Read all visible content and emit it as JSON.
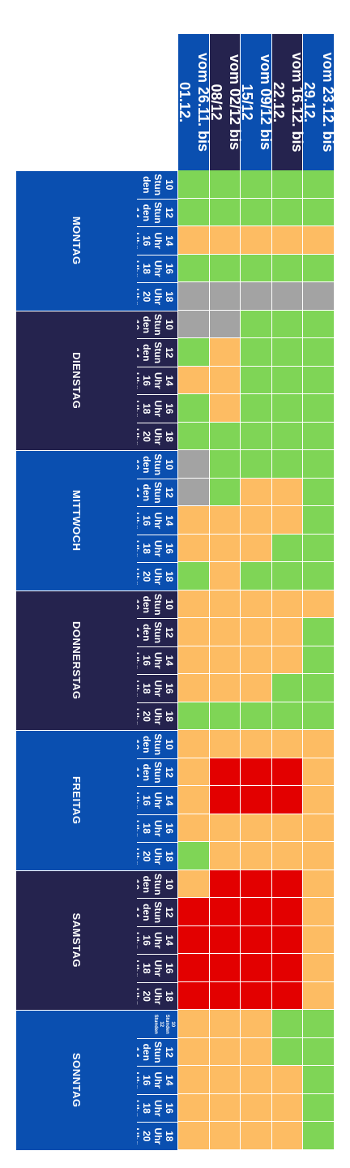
{
  "colors": {
    "header_blue": "#0a4fb0",
    "header_navy": "#25234e",
    "green": "#7fd556",
    "orange": "#fdbc63",
    "red": "#e30000",
    "gray": "#a3a3a3"
  },
  "week_headers": [
    {
      "label": "vom 23.12. bis 29.12.",
      "color": "blue"
    },
    {
      "label": "vom 16.12. bis 22.12.",
      "color": "navy"
    },
    {
      "label": "vom 09/12 bis 15/12",
      "color": "blue"
    },
    {
      "label": "vom 02/12 bis 08/12",
      "color": "navy"
    },
    {
      "label": "vom 26.11. bis 01.12.",
      "color": "blue"
    }
  ],
  "days": [
    {
      "name": "MONTAG",
      "color": "blue",
      "slots": [
        "10 Stunden",
        "12 Stunden",
        "14 Uhr",
        "16 Uhr",
        "18 Uhr"
      ],
      "slot_lines": [
        [
          "10",
          "Stun",
          "den"
        ],
        [
          "12",
          "Stun",
          "den"
        ],
        [
          "14",
          "Uhr",
          "16"
        ],
        [
          "16",
          "Uhr",
          "18"
        ],
        [
          "18",
          "Uhr",
          "20"
        ]
      ],
      "slot_tail": [
        "12",
        "Uhr",
        "Uhr",
        "Uhr",
        "Uhr"
      ],
      "cells": [
        [
          "g",
          "g",
          "g",
          "g",
          "g"
        ],
        [
          "g",
          "g",
          "g",
          "g",
          "g"
        ],
        [
          "o",
          "o",
          "o",
          "o",
          "o"
        ],
        [
          "g",
          "g",
          "g",
          "g",
          "g"
        ],
        [
          "x",
          "x",
          "x",
          "x",
          "x"
        ]
      ]
    },
    {
      "name": "DIENSTAG",
      "color": "navy",
      "slots": [
        "10 Stunden",
        "12 Stunden",
        "14 Uhr",
        "16 Uhr",
        "18 Uhr"
      ],
      "cells": [
        [
          "g",
          "g",
          "g",
          "x",
          "x"
        ],
        [
          "g",
          "g",
          "g",
          "o",
          "g"
        ],
        [
          "g",
          "g",
          "g",
          "o",
          "o"
        ],
        [
          "g",
          "g",
          "g",
          "o",
          "g"
        ],
        [
          "g",
          "g",
          "g",
          "g",
          "g"
        ]
      ]
    },
    {
      "name": "MITTWOCH",
      "color": "blue",
      "slots": [
        "10 Stunden",
        "12 Stunden",
        "14 Uhr",
        "16 Uhr",
        "18 Uhr"
      ],
      "cells": [
        [
          "g",
          "g",
          "g",
          "g",
          "x"
        ],
        [
          "g",
          "o",
          "o",
          "g",
          "x"
        ],
        [
          "g",
          "o",
          "o",
          "o",
          "o"
        ],
        [
          "g",
          "g",
          "o",
          "o",
          "o"
        ],
        [
          "g",
          "g",
          "g",
          "o",
          "g"
        ]
      ]
    },
    {
      "name": "DONNERSTAG",
      "color": "navy",
      "slots": [
        "10 Stunden",
        "12 Stunden",
        "14 Uhr",
        "16 Uhr",
        "18 Uhr"
      ],
      "cells": [
        [
          "o",
          "o",
          "o",
          "o",
          "o"
        ],
        [
          "g",
          "o",
          "o",
          "o",
          "o"
        ],
        [
          "g",
          "o",
          "o",
          "o",
          "o"
        ],
        [
          "g",
          "g",
          "o",
          "o",
          "o"
        ],
        [
          "g",
          "g",
          "g",
          "g",
          "g"
        ]
      ]
    },
    {
      "name": "FREITAG",
      "color": "blue",
      "slots": [
        "10 Stunden",
        "12 Stunden",
        "14 Uhr",
        "16 Uhr",
        "18 Uhr"
      ],
      "cells": [
        [
          "o",
          "o",
          "o",
          "o",
          "o"
        ],
        [
          "o",
          "r",
          "r",
          "r",
          "o"
        ],
        [
          "o",
          "r",
          "r",
          "r",
          "o"
        ],
        [
          "o",
          "o",
          "o",
          "o",
          "o"
        ],
        [
          "o",
          "o",
          "o",
          "o",
          "g"
        ]
      ]
    },
    {
      "name": "SAMSTAG",
      "color": "navy",
      "slots": [
        "10 Stunden",
        "12 Stunden",
        "14 Uhr",
        "16 Uhr",
        "18 Uhr"
      ],
      "cells": [
        [
          "o",
          "r",
          "r",
          "r",
          "o"
        ],
        [
          "o",
          "r",
          "r",
          "r",
          "r"
        ],
        [
          "o",
          "r",
          "r",
          "r",
          "r"
        ],
        [
          "o",
          "r",
          "r",
          "r",
          "r"
        ],
        [
          "o",
          "r",
          "r",
          "r",
          "r"
        ]
      ]
    },
    {
      "name": "SONNTAG",
      "color": "blue",
      "slots": [
        "10 Stunden 12 Stunden",
        "12 Stunden",
        "14 Uhr",
        "16 Uhr",
        "18 Uhr"
      ],
      "cells": [
        [
          "g",
          "g",
          "o",
          "o",
          "o"
        ],
        [
          "g",
          "g",
          "o",
          "o",
          "o"
        ],
        [
          "g",
          "o",
          "o",
          "o",
          "o"
        ],
        [
          "g",
          "o",
          "o",
          "o",
          "o"
        ],
        [
          "g",
          "o",
          "o",
          "o",
          "o"
        ]
      ]
    }
  ],
  "slot_texts": {
    "MONTAG": [
      "10 Stun den",
      "12 Stun den 14 Uhr",
      "14 Uhr 16 Uhr",
      "16 Uhr 18 Uhr",
      "18 Uhr 20 Uhr"
    ],
    "standard": [
      "10 Stun den 12 Stun den",
      "12 Stun den 14 Uhr",
      "14 Uhr 16 Uhr",
      "16 Uhr 18 Uhr",
      "18 Uhr 20 Uhr"
    ],
    "SONNTAG": [
      "10 Stunden 12 Stunden",
      "12 Stun den 14 Uhr",
      "14 Uhr 16 Uhr",
      "16 Uhr 18 Uhr",
      "18 Uhr 20 Uhr"
    ]
  }
}
